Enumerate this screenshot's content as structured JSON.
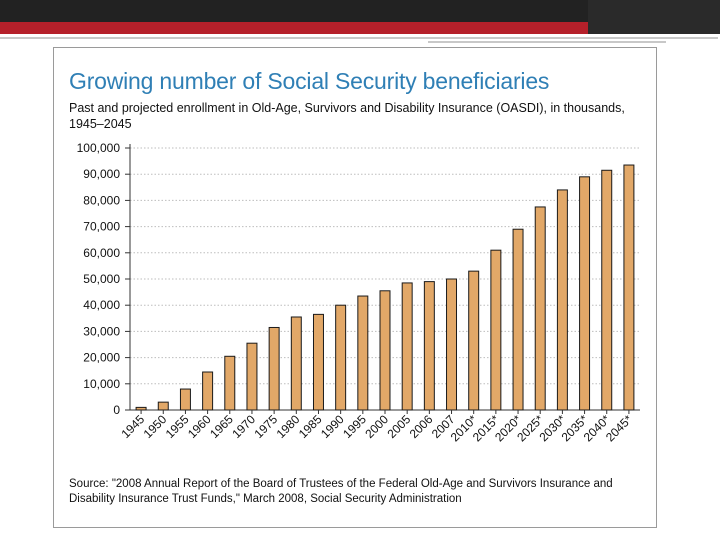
{
  "slide": {
    "title": "Growing number of Social Security beneficiaries",
    "subtitle": "Past and projected enrollment in Old-Age, Survivors and Disability Insurance (OASDI), in thousands, 1945–2045",
    "source": "Source: \"2008 Annual Report of the Board of Trustees of the Federal Old-Age and Survivors Insurance and Disability Insurance Trust Funds,\" March 2008, Social Security Administration"
  },
  "colors": {
    "bar_fill": "#e2a868",
    "bar_stroke": "#1a1a1a",
    "title": "#2f7fb5",
    "grid": "#bdbdbd"
  },
  "chart_data": {
    "type": "bar",
    "title": "Growing number of Social Security beneficiaries",
    "xlabel": "",
    "ylabel": "",
    "ylim": [
      0,
      100000
    ],
    "yticks": [
      0,
      10000,
      20000,
      30000,
      40000,
      50000,
      60000,
      70000,
      80000,
      90000,
      100000
    ],
    "ytick_labels": [
      "0",
      "10,000",
      "20,000",
      "30,000",
      "40,000",
      "50,000",
      "60,000",
      "70,000",
      "80,000",
      "90,000",
      "100,000"
    ],
    "grid": true,
    "categories": [
      "1945",
      "1950",
      "1955",
      "1960",
      "1965",
      "1970",
      "1975",
      "1980",
      "1985",
      "1990",
      "1995",
      "2000",
      "2005",
      "2006",
      "2007",
      "2010*",
      "2015*",
      "2020*",
      "2025*",
      "2030*",
      "2035*",
      "2040*",
      "2045*"
    ],
    "values": [
      1000,
      3000,
      8000,
      14500,
      20500,
      25500,
      31500,
      35500,
      36500,
      40000,
      43500,
      45500,
      48500,
      49000,
      50000,
      53000,
      61000,
      69000,
      77500,
      84000,
      89000,
      91500,
      93500
    ]
  }
}
